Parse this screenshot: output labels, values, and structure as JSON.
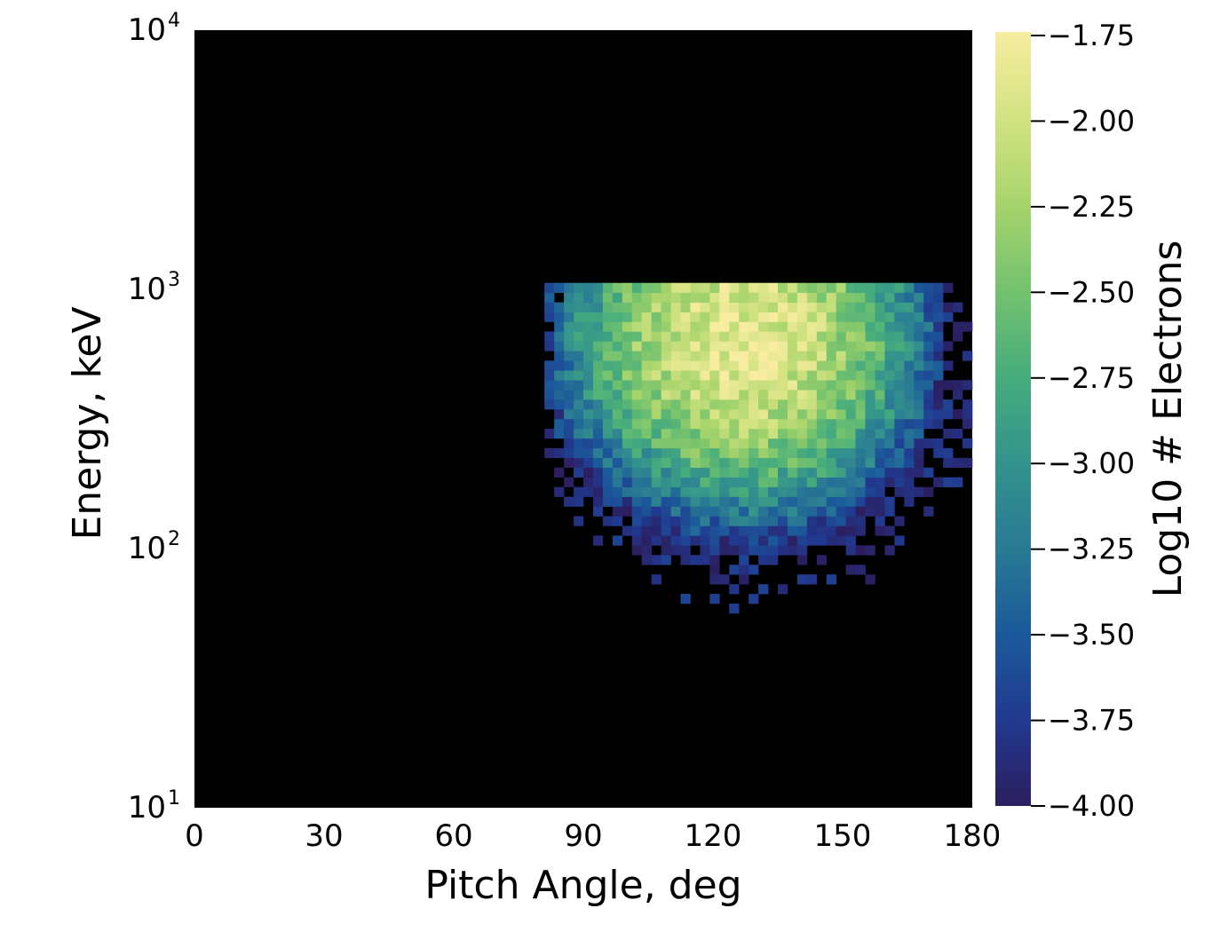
{
  "chart_data": {
    "type": "heatmap",
    "title": "",
    "xlabel": "Pitch Angle, deg",
    "ylabel": "Energy, keV",
    "xlim": [
      0,
      180
    ],
    "ylim": [
      10,
      10000
    ],
    "yscale": "log",
    "x_ticks": [
      "0",
      "30",
      "60",
      "90",
      "120",
      "150",
      "180"
    ],
    "y_ticks": [
      {
        "base": "10",
        "exp": "1"
      },
      {
        "base": "10",
        "exp": "2"
      },
      {
        "base": "10",
        "exp": "3"
      },
      {
        "base": "10",
        "exp": "4"
      }
    ],
    "background_color": "#000000",
    "grid": false,
    "bins": {
      "pitch_angle_step_deg": 2.25,
      "log_energy_step": 0.0375,
      "pitch_angle_range": [
        81,
        180
      ],
      "energy_range_keV": [
        10,
        1000
      ]
    },
    "peak": {
      "pitch_angle_deg": 127,
      "energy_keV": 630,
      "log10_electrons": -1.75
    },
    "colorbar": {
      "label": "Log10 # Electrons",
      "range": [
        -4.0,
        -1.75
      ],
      "ticks": [
        "−1.75",
        "−2.00",
        "−2.25",
        "−2.50",
        "−2.75",
        "−3.00",
        "−3.25",
        "−3.50",
        "−3.75",
        "−4.00"
      ],
      "colormap": [
        "#2c1e5f",
        "#21398f",
        "#1b5a9a",
        "#2a7a94",
        "#33938c",
        "#47ad7c",
        "#74c26e",
        "#a7d46c",
        "#d3e382",
        "#f7eca0"
      ]
    }
  }
}
